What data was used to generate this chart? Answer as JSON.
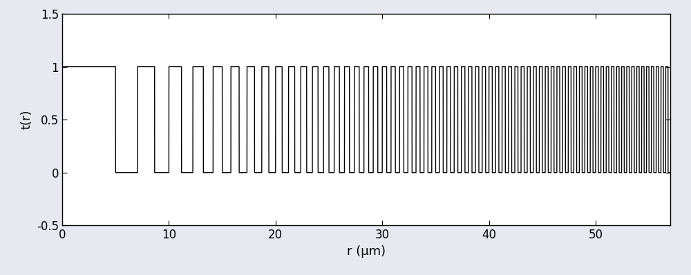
{
  "title": "",
  "xlabel": "r (μm)",
  "ylabel": "t(r)",
  "xlim": [
    0,
    57
  ],
  "ylim": [
    -0.5,
    1.5
  ],
  "yticks": [
    -0.5,
    0,
    0.5,
    1,
    1.5
  ],
  "xticks": [
    0,
    10,
    20,
    30,
    40,
    50
  ],
  "r1": 5.0,
  "line_color": "#000000",
  "line_width": 1.0,
  "background_color": "#ffffff",
  "fig_bg_color": "#e8e8f0",
  "figsize": [
    10.0,
    3.98
  ],
  "dpi": 100,
  "xlabel_fontsize": 13,
  "ylabel_fontsize": 13,
  "tick_labelsize": 12
}
